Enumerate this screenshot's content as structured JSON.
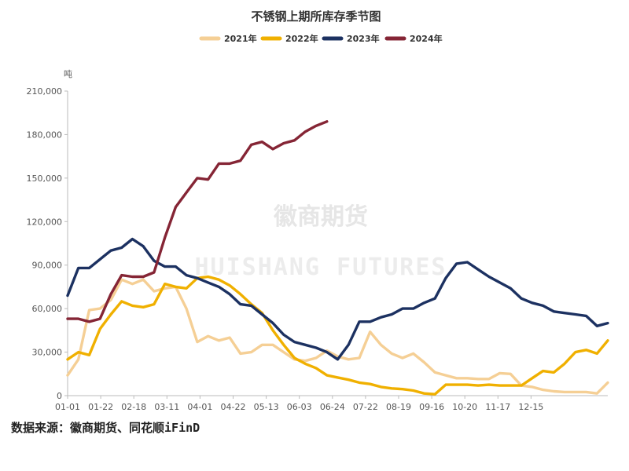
{
  "chart_data": {
    "type": "line",
    "title": "不锈钢上期所库存季节图",
    "ylabel": "吨",
    "xlabel": "",
    "ylim": [
      0,
      210000
    ],
    "yticks": [
      0,
      30000,
      60000,
      90000,
      120000,
      150000,
      180000,
      210000
    ],
    "ytick_labels": [
      "0",
      "30,000",
      "60,000",
      "90,000",
      "120,000",
      "150,000",
      "180,000",
      "210,000"
    ],
    "xtick_labels": [
      "01-01",
      "01-22",
      "02-18",
      "03-11",
      "04-01",
      "04-22",
      "05-13",
      "06-03",
      "06-24",
      "07-22",
      "08-19",
      "09-16",
      "10-20",
      "11-17",
      "12-15"
    ],
    "legend_position": "top-center",
    "grid": false,
    "series": [
      {
        "name": "2021年",
        "color": "#f5cf95",
        "values": [
          14000,
          25000,
          59000,
          60000,
          66000,
          80000,
          77000,
          80000,
          72000,
          74000,
          75000,
          60000,
          37000,
          41000,
          38000,
          40000,
          29000,
          30000,
          35000,
          35000,
          30000,
          25000,
          24000,
          26000,
          31000,
          27000,
          25000,
          26000,
          44000,
          35000,
          29000,
          26000,
          29000,
          23000,
          16000,
          14000,
          12000,
          12000,
          11500,
          11500,
          15500,
          15000,
          7000,
          6000,
          4000,
          3000,
          2500,
          2500,
          2500,
          1500,
          9000
        ]
      },
      {
        "name": "2022年",
        "color": "#f0b000",
        "values": [
          25000,
          30000,
          28000,
          46000,
          56000,
          65000,
          62000,
          61000,
          63000,
          77000,
          75000,
          74000,
          81000,
          82000,
          80000,
          76000,
          70000,
          63000,
          57000,
          45000,
          35000,
          26000,
          22000,
          19000,
          14000,
          12500,
          11000,
          9000,
          8000,
          6000,
          5000,
          4500,
          3500,
          1500,
          1000,
          7500,
          7500,
          7500,
          7000,
          7500,
          7000,
          7000,
          7000,
          12000,
          17000,
          16000,
          22000,
          30000,
          31500,
          29000,
          38000
        ]
      },
      {
        "name": "2023年",
        "color": "#1c3161",
        "values": [
          69000,
          88000,
          88000,
          94000,
          100000,
          102000,
          108000,
          103000,
          93000,
          89000,
          89000,
          83000,
          81000,
          78000,
          75000,
          70000,
          63000,
          62000,
          56000,
          50000,
          42000,
          37000,
          35000,
          33000,
          30000,
          25000,
          35000,
          51000,
          51000,
          54000,
          56000,
          60000,
          60000,
          64000,
          67000,
          81000,
          91000,
          92000,
          87000,
          82000,
          78000,
          74000,
          67000,
          64000,
          62000,
          58000,
          57000,
          56000,
          55000,
          48000,
          50000
        ]
      },
      {
        "name": "2024年",
        "color": "#852535",
        "values": [
          53000,
          53000,
          51000,
          53000,
          70000,
          83000,
          82000,
          82000,
          85000,
          109000,
          130000,
          140000,
          150000,
          149000,
          160000,
          160000,
          162000,
          173000,
          175000,
          170000,
          174000,
          176000,
          182000,
          186000,
          189000
        ]
      }
    ]
  },
  "watermark": {
    "line1": "徽商期货",
    "line2": "HUISHANG FUTURES"
  },
  "source_text": "数据来源：徽商期货、同花顺iFinD"
}
